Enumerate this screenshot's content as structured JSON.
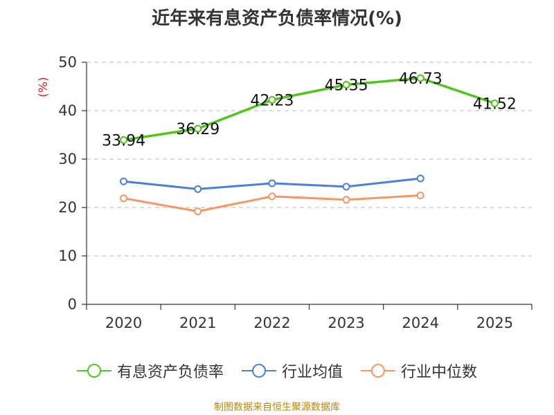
{
  "chart_data": {
    "type": "line",
    "title": "近年来有息资产负债率情况(%)",
    "ylabel": "(%)",
    "xlabel": "",
    "categories": [
      "2020",
      "2021",
      "2022",
      "2023",
      "2024",
      "2025"
    ],
    "ylim": [
      0,
      50
    ],
    "yticks": [
      0,
      10,
      20,
      30,
      40,
      50
    ],
    "grid": true,
    "legend_position": "bottom",
    "series": [
      {
        "name": "有息资产负债率",
        "color": "#52c41a",
        "values": [
          33.94,
          36.29,
          42.23,
          45.35,
          46.73,
          41.52
        ],
        "labels": [
          "33.94",
          "36.29",
          "42.23",
          "45.35",
          "46.73",
          "41.52"
        ]
      },
      {
        "name": "行业均值",
        "color": "#4a7fe0",
        "values": [
          25.4,
          23.8,
          25.0,
          24.3,
          26.0,
          null
        ]
      },
      {
        "name": "行业中位数",
        "color": "#f79563",
        "values": [
          21.9,
          19.2,
          22.3,
          21.6,
          22.5,
          null
        ]
      }
    ]
  },
  "footer": {
    "source": "制图数据来自恒生聚源数据库"
  }
}
